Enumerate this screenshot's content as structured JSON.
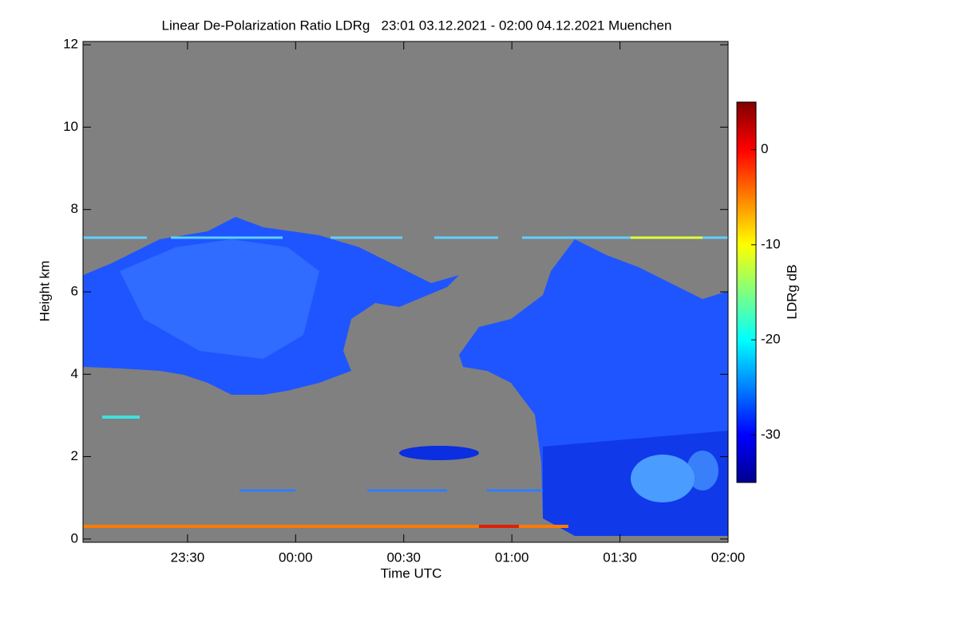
{
  "chart_data": {
    "type": "heatmap",
    "title": "Linear De-Polarization Ratio LDRg   23:01 03.12.2021 - 02:00 04.12.2021 Muenchen",
    "x_label": "Time UTC",
    "y_label": "Height km",
    "colorbar_label": "LDRg dB",
    "xlim": [
      1,
      180
    ],
    "xticks": [
      {
        "value": 30,
        "label": "23:30"
      },
      {
        "value": 60,
        "label": "00:00"
      },
      {
        "value": 90,
        "label": "00:30"
      },
      {
        "value": 120,
        "label": "01:00"
      },
      {
        "value": 150,
        "label": "01:30"
      },
      {
        "value": 180,
        "label": "02:00"
      }
    ],
    "ylim": [
      -0.08,
      12.08
    ],
    "yticks": [
      0,
      2,
      4,
      6,
      8,
      10,
      12
    ],
    "clim": [
      -35,
      5
    ],
    "cticks": [
      -30,
      -20,
      -10,
      0
    ],
    "colormap": [
      "#00008f",
      "#0000ff",
      "#0080ff",
      "#00ffff",
      "#80ff80",
      "#ffff00",
      "#ff8000",
      "#ff0000",
      "#800000"
    ]
  }
}
